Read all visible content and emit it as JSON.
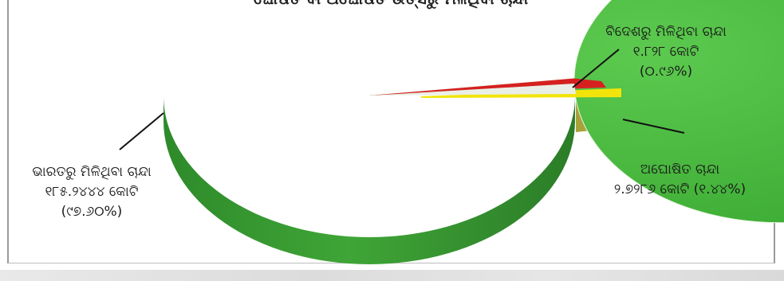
{
  "chart_data": {
    "type": "pie",
    "title": "ଘୋଷିତ ବା ଅଘୋଷିତ ଉତ୍ସରୁ ମିଳିଥିବା ଚାନ୍ଦା",
    "slices": [
      {
        "key": "india",
        "label": "ଭାରତରୁ ମିଳିଥିବା ଚାନ୍ଦା",
        "amount_text": "୧୮୫.୨୪୪୪ କୋଟି",
        "percent_text": "(୯୭.୬୦%)",
        "value": 97.6,
        "color": "#46b83c"
      },
      {
        "key": "foreign",
        "label": "ବିଦେଶରୁ ମିଳିଥିବା ଚାନ୍ଦା",
        "amount_text": "୧.୮୨୮ କୋଟି",
        "percent_text": "(୦.୯୬%)",
        "value": 0.96,
        "color": "#d62020"
      },
      {
        "key": "anonymous",
        "label": "ଅଘୋଷିତ ଚାନ୍ଦା",
        "amount_text": "୨.୭୨୮୬ କୋଟି (୧.୪୪%)",
        "percent_text": "",
        "value": 1.44,
        "color": "#f2e40a",
        "exploded": true
      }
    ],
    "legend": "none"
  }
}
